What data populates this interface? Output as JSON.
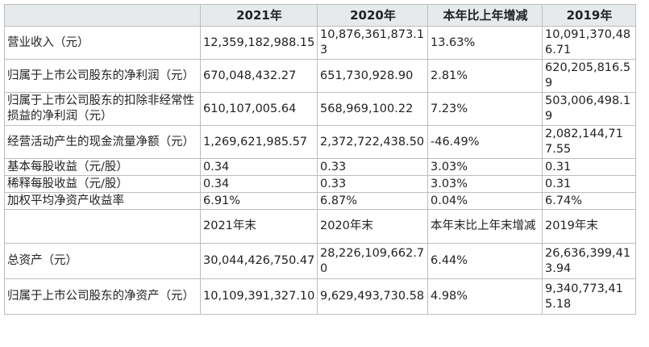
{
  "header": [
    "",
    "2021年",
    "2020年",
    "本年比上年增减",
    "2019年"
  ],
  "rows": [
    [
      "营业收入（元）",
      "12,359,182,988.15",
      "10,876,361,873.13",
      "13.63%",
      "10,091,370,486.71"
    ],
    [
      "归属于上市公司股东的净利润（元）",
      "670,048,432.27",
      "651,730,928.90",
      "2.81%",
      "620,205,816.59"
    ],
    [
      "归属于上市公司股东的扣除非经常性 损益的净利润（元）",
      "610,107,005.64",
      "568,969,100.22",
      "7.23%",
      "503,006,498.19"
    ],
    [
      "经营活动产生的现金流量净额（元）",
      "1,269,621,985.57",
      "2,372,722,438.50",
      "-46.49%",
      "2,082,144,717.55"
    ],
    [
      "基本每股收益（元/股）",
      "0.34",
      "0.33",
      "3.03%",
      "0.31"
    ],
    [
      "稀释每股收益（元/股）",
      "0.34",
      "0.33",
      "3.03%",
      "0.31"
    ],
    [
      "加权平均净资产收益率",
      "6.91%",
      "6.87%",
      "0.04%",
      "6.74%"
    ]
  ],
  "subheader": [
    "",
    "2021年末",
    "2020年末",
    "本年末比上年末增减",
    "2019年末"
  ],
  "rows2": [
    [
      "总资产（元）",
      "30,044,426,750.47",
      "28,226,109,662.70",
      "6.44%",
      "26,636,399,413.94"
    ],
    [
      "归属于上市公司股东的净资产（元）",
      "10,109,391,327.10",
      "9,629,493,730.58",
      "4.98%",
      "9,340,773,415.18"
    ]
  ]
}
